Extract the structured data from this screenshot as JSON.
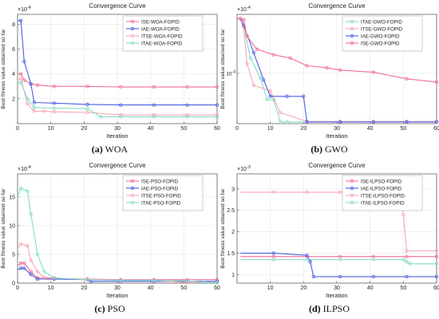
{
  "colors": {
    "ISE": "#f06e9a",
    "IAE": "#4a5fe0",
    "ITSE": "#f7a8b0",
    "ITAE": "#86dcc8",
    "axis": "#4d4d4d",
    "grid": "#e6e6e6"
  },
  "chart_data": [
    {
      "id": "a",
      "type": "line",
      "title": "Convergence Curve",
      "xlabel": "Iteration",
      "ylabel": "Best fitness value obtained so far",
      "exponent": "×10^-4",
      "xlim": [
        0,
        60
      ],
      "xticks": [
        "0",
        "10",
        "20",
        "30",
        "40",
        "50",
        "60"
      ],
      "ylim": [
        0,
        8.8
      ],
      "yticks": [
        {
          "v": 2,
          "label": "2"
        },
        {
          "v": 4,
          "label": "4"
        },
        {
          "v": 6,
          "label": "6"
        },
        {
          "v": 8,
          "label": "8"
        }
      ],
      "legend_position": "top-right",
      "caption_letter": "(a)",
      "caption_name": " WOA",
      "series": [
        {
          "name": "ISE-WOA-FOPID",
          "key": "ISE",
          "x": [
            0,
            1,
            2,
            4,
            6,
            11,
            21,
            31,
            41,
            51,
            60
          ],
          "y": [
            4.0,
            4.0,
            3.5,
            3.2,
            3.1,
            3.0,
            3.0,
            2.95,
            2.95,
            2.95,
            2.95
          ]
        },
        {
          "name": "IAE-WOA-FOPID",
          "key": "IAE",
          "x": [
            0,
            1,
            2,
            4,
            5,
            11,
            21,
            31,
            41,
            51,
            60
          ],
          "y": [
            8.3,
            8.3,
            5.0,
            3.2,
            1.7,
            1.65,
            1.55,
            1.5,
            1.5,
            1.5,
            1.5
          ]
        },
        {
          "name": "ITSE-WOA-FOPID",
          "key": "ITSE",
          "x": [
            0,
            1,
            3,
            5,
            8,
            11,
            21,
            31,
            41,
            51,
            60
          ],
          "y": [
            3.6,
            3.6,
            1.6,
            1.0,
            1.0,
            0.95,
            0.9,
            0.7,
            0.7,
            0.7,
            0.7
          ]
        },
        {
          "name": "ITAE-WOA-FOPID",
          "key": "ITAE",
          "x": [
            0,
            1,
            3,
            5,
            11,
            21,
            25,
            31,
            41,
            51,
            60
          ],
          "y": [
            3.3,
            3.3,
            2.0,
            1.3,
            1.25,
            1.2,
            0.55,
            0.55,
            0.55,
            0.55,
            0.55
          ]
        }
      ]
    },
    {
      "id": "b",
      "type": "line",
      "title": "Convergence Curve",
      "xlabel": "Iteration",
      "ylabel": "Best fitness value obtained so far",
      "exponent": "×10^-4",
      "xlim": [
        0,
        60
      ],
      "xticks": [
        "0",
        "10",
        "20",
        "30",
        "40",
        "50",
        "60"
      ],
      "ylim": [
        0,
        10
      ],
      "yticks": [
        {
          "v": 4.6,
          "label": "10^-4"
        }
      ],
      "legend_position": "top-right",
      "caption_letter": "(b)",
      "caption_name": " GWO",
      "series": [
        {
          "name": "ITAE-GWO-FOPID",
          "key": "ITAE",
          "x": [
            0,
            1,
            2,
            4,
            7,
            9,
            11,
            13,
            15,
            60
          ],
          "y": [
            9.6,
            9.6,
            9.0,
            6.0,
            4.2,
            2.2,
            2.2,
            0.15,
            0.15,
            0.15
          ]
        },
        {
          "name": "ITSE-GWO-FOPID",
          "key": "ITSE",
          "x": [
            0,
            1,
            2,
            3,
            5,
            10,
            13,
            21,
            31,
            41,
            51,
            60
          ],
          "y": [
            9.6,
            9.6,
            8.8,
            5.5,
            3.5,
            3.0,
            1.0,
            0.2,
            0.2,
            0.2,
            0.2,
            0.2
          ]
        },
        {
          "name": "IAE-GWO-FOPID",
          "key": "IAE",
          "x": [
            0,
            1,
            2,
            5,
            8,
            10,
            15,
            20,
            21,
            31,
            41,
            51,
            60
          ],
          "y": [
            9.6,
            9.6,
            9.0,
            6.5,
            4.0,
            2.5,
            2.5,
            2.5,
            0.15,
            0.15,
            0.15,
            0.15,
            0.15
          ]
        },
        {
          "name": "ISE-GWO-FOPID",
          "key": "ISE",
          "x": [
            0,
            1,
            2,
            3,
            6,
            11,
            16,
            21,
            27,
            31,
            41,
            51,
            60
          ],
          "y": [
            9.6,
            9.6,
            9.5,
            8.0,
            6.8,
            6.3,
            6.0,
            5.3,
            5.1,
            4.9,
            4.7,
            4.1,
            3.8
          ]
        }
      ]
    },
    {
      "id": "c",
      "type": "line",
      "title": "Convergence Curve",
      "xlabel": "Iteration",
      "ylabel": "Best fitness value obtained so far",
      "exponent": "×10^-4",
      "xlim": [
        0,
        60
      ],
      "xticks": [
        "0",
        "10",
        "20",
        "30",
        "40",
        "50",
        "60"
      ],
      "ylim": [
        0,
        19
      ],
      "yticks": [
        {
          "v": 0,
          "label": "0"
        },
        {
          "v": 5,
          "label": "5"
        },
        {
          "v": 10,
          "label": "10"
        },
        {
          "v": 15,
          "label": "15"
        }
      ],
      "legend_position": "top-right",
      "caption_letter": "(c)",
      "caption_name": " PSO",
      "series": [
        {
          "name": "ISE-PSO-FOPID",
          "key": "ISE",
          "x": [
            0,
            1,
            2,
            4,
            6,
            11,
            21,
            31,
            41,
            51,
            60
          ],
          "y": [
            3.0,
            3.5,
            3.5,
            2.0,
            0.9,
            0.8,
            0.7,
            0.6,
            0.6,
            0.6,
            0.6
          ]
        },
        {
          "name": "IAE-PSO-FOPID",
          "key": "IAE",
          "x": [
            0,
            1,
            2,
            4,
            6,
            11,
            21,
            22,
            31,
            41,
            51,
            60
          ],
          "y": [
            2.3,
            2.6,
            2.6,
            1.5,
            0.7,
            0.7,
            0.6,
            0.3,
            0.3,
            0.3,
            0.3,
            0.3
          ]
        },
        {
          "name": "ITSE-PSO-FOPID",
          "key": "ITSE",
          "x": [
            0,
            1,
            3,
            4,
            6,
            8,
            11,
            21,
            31,
            41,
            51,
            60
          ],
          "y": [
            6.0,
            6.8,
            6.5,
            4.0,
            2.0,
            1.0,
            0.9,
            0.6,
            0.5,
            0.5,
            0.1,
            0.1
          ]
        },
        {
          "name": "ITAE-PSO-FOPID",
          "key": "ITAE",
          "x": [
            0,
            1,
            3,
            4,
            6,
            8,
            11,
            21,
            31,
            41,
            51,
            56,
            60
          ],
          "y": [
            15.0,
            16.5,
            16.0,
            12.0,
            5.0,
            2.0,
            0.9,
            0.6,
            0.5,
            0.5,
            0.4,
            0.1,
            0.1
          ]
        }
      ]
    },
    {
      "id": "d",
      "type": "line",
      "title": "Convergence Curve",
      "xlabel": "Iteration",
      "ylabel": "Best fitness value obtained so far",
      "exponent": "×10^-3",
      "xlim": [
        0,
        60
      ],
      "xticks": [
        "10",
        "20",
        "30",
        "40",
        "50",
        "60"
      ],
      "xticks_values": [
        10,
        20,
        30,
        40,
        50,
        60
      ],
      "ylim": [
        0.8,
        3.35
      ],
      "yticks": [
        {
          "v": 1,
          "label": "1"
        },
        {
          "v": 1.5,
          "label": "1.5"
        },
        {
          "v": 2,
          "label": "2"
        },
        {
          "v": 2.5,
          "label": "2.5"
        },
        {
          "v": 3,
          "label": "3"
        }
      ],
      "legend_position": "top-right",
      "caption_letter": "(d)",
      "caption_name": " ILPSO",
      "series": [
        {
          "name": "ISE-ILPSO-FOPID",
          "key": "ISE",
          "x": [
            1,
            11,
            21,
            31,
            41,
            51,
            60
          ],
          "y": [
            1.42,
            1.42,
            1.42,
            1.42,
            1.42,
            1.42,
            1.42
          ]
        },
        {
          "name": "IAE-ILPSO-FOPID",
          "key": "IAE",
          "x": [
            1,
            11,
            21,
            22,
            23,
            31,
            41,
            51,
            60
          ],
          "y": [
            1.5,
            1.5,
            1.45,
            1.3,
            0.95,
            0.95,
            0.95,
            0.95,
            0.95
          ]
        },
        {
          "name": "ITSE-ILPSO-FOPID",
          "key": "ITSE",
          "x": [
            1,
            11,
            21,
            31,
            41,
            49,
            50,
            51,
            60
          ],
          "y": [
            2.92,
            2.92,
            2.92,
            2.92,
            2.92,
            2.9,
            2.4,
            1.55,
            1.55
          ]
        },
        {
          "name": "ITAE-ILPSO-FOPID",
          "key": "ITAE",
          "x": [
            1,
            11,
            21,
            31,
            41,
            50,
            51,
            52,
            60
          ],
          "y": [
            1.35,
            1.35,
            1.35,
            1.35,
            1.35,
            1.35,
            1.3,
            1.25,
            1.25
          ]
        }
      ]
    }
  ]
}
